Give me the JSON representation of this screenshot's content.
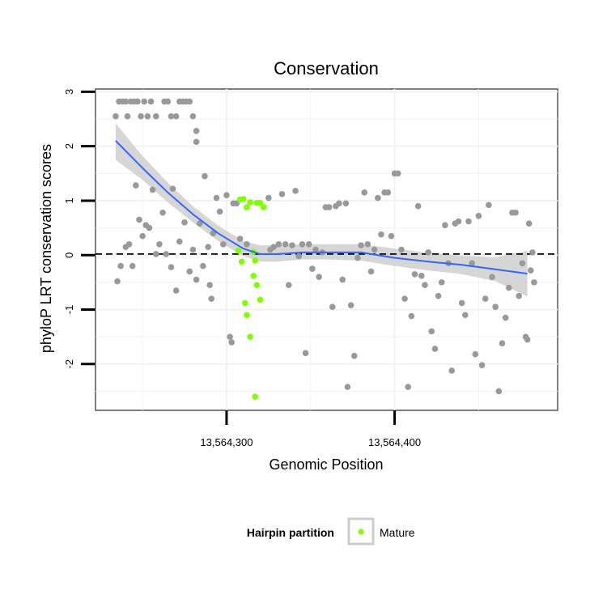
{
  "chart_data": {
    "type": "scatter",
    "title": "Conservation",
    "xlabel": "Genomic Position",
    "ylabel": "phyloP LRT conservation scores",
    "xlim": [
      13564222,
      13564497
    ],
    "ylim": [
      -2.85,
      3.05
    ],
    "x_ticks": [
      {
        "value": 13564300,
        "label": "13,564,300"
      },
      {
        "value": 13564400,
        "label": "13,564,400"
      }
    ],
    "y_ticks": [
      {
        "value": -2,
        "label": "-2"
      },
      {
        "value": -1,
        "label": "-1"
      },
      {
        "value": 0,
        "label": "0"
      },
      {
        "value": 1,
        "label": "1"
      },
      {
        "value": 2,
        "label": "2"
      },
      {
        "value": 3,
        "label": "3"
      }
    ],
    "grid": true,
    "reference_line": {
      "y": 0.02,
      "style": "dashed",
      "color": "#000000"
    },
    "legend": {
      "title": "Hairpin partition",
      "position": "bottom",
      "entries": [
        {
          "label": "Mature",
          "color": "#7fff00"
        }
      ]
    },
    "colors": {
      "other": "#999999",
      "mature": "#7fff00",
      "smooth": "#3366ff",
      "band": "#c8c8c8",
      "panel_border": "#7f7f7f"
    },
    "smooth_curve": {
      "x": [
        13564234,
        13564250,
        13564265,
        13564280,
        13564295,
        13564310,
        13564320,
        13564330,
        13564345,
        13564360,
        13564380,
        13564400,
        13564420,
        13564440,
        13564460,
        13564479
      ],
      "y": [
        2.1,
        1.6,
        1.15,
        0.75,
        0.4,
        0.12,
        0.02,
        0.02,
        0.05,
        0.05,
        0.05,
        -0.05,
        -0.12,
        -0.18,
        -0.26,
        -0.34
      ],
      "upper": [
        2.42,
        1.82,
        1.33,
        0.9,
        0.54,
        0.26,
        0.18,
        0.18,
        0.2,
        0.2,
        0.2,
        0.12,
        0.04,
        -0.01,
        -0.04,
        0.08
      ],
      "lower": [
        1.75,
        1.38,
        0.97,
        0.6,
        0.26,
        -0.02,
        -0.12,
        -0.12,
        -0.08,
        -0.08,
        -0.1,
        -0.2,
        -0.28,
        -0.35,
        -0.48,
        -0.76
      ]
    },
    "series": [
      {
        "name": "Mature",
        "points": [
          [
            13564308,
            1.02
          ],
          [
            13564310,
            1.03
          ],
          [
            13564312,
            0.88
          ],
          [
            13564314,
            0.97
          ],
          [
            13564316,
            0.06
          ],
          [
            13564318,
            0.96
          ],
          [
            13564320,
            0.96
          ],
          [
            13564322,
            0.88
          ],
          [
            13564307,
            0.08
          ],
          [
            13564309,
            -0.12
          ],
          [
            13564311,
            -0.88
          ],
          [
            13564312,
            -1.1
          ],
          [
            13564314,
            -1.5
          ],
          [
            13564316,
            -0.38
          ],
          [
            13564317,
            -0.1
          ],
          [
            13564318,
            -0.55
          ],
          [
            13564320,
            -0.82
          ],
          [
            13564317,
            -2.6
          ]
        ]
      },
      {
        "name": "Other",
        "points": [
          [
            13564234,
            2.55
          ],
          [
            13564236,
            2.82
          ],
          [
            13564238,
            2.82
          ],
          [
            13564240,
            2.82
          ],
          [
            13564241,
            2.55
          ],
          [
            13564243,
            2.82
          ],
          [
            13564245,
            2.82
          ],
          [
            13564247,
            2.82
          ],
          [
            13564249,
            2.55
          ],
          [
            13564251,
            2.82
          ],
          [
            13564253,
            2.55
          ],
          [
            13564255,
            2.82
          ],
          [
            13564258,
            2.55
          ],
          [
            13564263,
            2.82
          ],
          [
            13564265,
            2.82
          ],
          [
            13564267,
            2.55
          ],
          [
            13564270,
            2.55
          ],
          [
            13564272,
            2.82
          ],
          [
            13564274,
            2.82
          ],
          [
            13564276,
            2.82
          ],
          [
            13564278,
            2.82
          ],
          [
            13564280,
            2.55
          ],
          [
            13564282,
            2.28
          ],
          [
            13564282,
            2.08
          ],
          [
            13564235,
            -0.48
          ],
          [
            13564237,
            -0.2
          ],
          [
            13564240,
            0.15
          ],
          [
            13564242,
            0.2
          ],
          [
            13564244,
            -0.2
          ],
          [
            13564246,
            1.28
          ],
          [
            13564248,
            0.65
          ],
          [
            13564250,
            0.35
          ],
          [
            13564252,
            0.55
          ],
          [
            13564254,
            0.5
          ],
          [
            13564256,
            1.2
          ],
          [
            13564258,
            0.02
          ],
          [
            13564260,
            0.2
          ],
          [
            13564262,
            0.78
          ],
          [
            13564264,
            0.02
          ],
          [
            13564267,
            -0.22
          ],
          [
            13564268,
            1.22
          ],
          [
            13564270,
            -0.65
          ],
          [
            13564272,
            0.25
          ],
          [
            13564275,
            0.6
          ],
          [
            13564278,
            -0.3
          ],
          [
            13564280,
            0.1
          ],
          [
            13564282,
            -0.45
          ],
          [
            13564284,
            0.58
          ],
          [
            13564286,
            -0.2
          ],
          [
            13564287,
            1.45
          ],
          [
            13564289,
            0.15
          ],
          [
            13564290,
            -0.55
          ],
          [
            13564291,
            -0.8
          ],
          [
            13564292,
            0.4
          ],
          [
            13564294,
            1.05
          ],
          [
            13564296,
            0.8
          ],
          [
            13564298,
            0.2
          ],
          [
            13564300,
            1.1
          ],
          [
            13564302,
            -1.5
          ],
          [
            13564303,
            -1.6
          ],
          [
            13564304,
            0.95
          ],
          [
            13564306,
            0.95
          ],
          [
            13564308,
            0.3
          ],
          [
            13564312,
            0.2
          ],
          [
            13564325,
            1.05
          ],
          [
            13564326,
            0.1
          ],
          [
            13564328,
            0.15
          ],
          [
            13564331,
            0.2
          ],
          [
            13564333,
            1.12
          ],
          [
            13564335,
            0.2
          ],
          [
            13564337,
            -0.55
          ],
          [
            13564339,
            0.18
          ],
          [
            13564341,
            1.18
          ],
          [
            13564343,
            -0.02
          ],
          [
            13564345,
            0.2
          ],
          [
            13564347,
            -1.8
          ],
          [
            13564349,
            0.2
          ],
          [
            13564351,
            -0.25
          ],
          [
            13564353,
            0.1
          ],
          [
            13564355,
            -0.4
          ],
          [
            13564357,
            0.05
          ],
          [
            13564359,
            0.88
          ],
          [
            13564361,
            0.88
          ],
          [
            13564363,
            -0.95
          ],
          [
            13564365,
            0.9
          ],
          [
            13564367,
            0.95
          ],
          [
            13564369,
            -0.45
          ],
          [
            13564371,
            0.95
          ],
          [
            13564372,
            -2.42
          ],
          [
            13564374,
            -0.92
          ],
          [
            13564376,
            -1.85
          ],
          [
            13564378,
            -0.05
          ],
          [
            13564380,
            0.18
          ],
          [
            13564382,
            1.15
          ],
          [
            13564384,
            0.2
          ],
          [
            13564386,
            -0.3
          ],
          [
            13564388,
            0.1
          ],
          [
            13564390,
            1.05
          ],
          [
            13564392,
            0.38
          ],
          [
            13564394,
            1.15
          ],
          [
            13564396,
            1.15
          ],
          [
            13564398,
            0.35
          ],
          [
            13564400,
            1.5
          ],
          [
            13564402,
            1.5
          ],
          [
            13564404,
            0.1
          ],
          [
            13564406,
            -0.8
          ],
          [
            13564408,
            -2.42
          ],
          [
            13564410,
            -1.12
          ],
          [
            13564412,
            -0.35
          ],
          [
            13564414,
            0.9
          ],
          [
            13564416,
            -0.38
          ],
          [
            13564418,
            -0.55
          ],
          [
            13564420,
            0.05
          ],
          [
            13564422,
            -1.4
          ],
          [
            13564424,
            -1.72
          ],
          [
            13564426,
            -0.75
          ],
          [
            13564428,
            -0.5
          ],
          [
            13564430,
            0.55
          ],
          [
            13564432,
            -0.15
          ],
          [
            13564434,
            -2.12
          ],
          [
            13564436,
            0.58
          ],
          [
            13564438,
            0.62
          ],
          [
            13564440,
            -0.88
          ],
          [
            13564442,
            -1.1
          ],
          [
            13564444,
            0.62
          ],
          [
            13564446,
            -0.15
          ],
          [
            13564448,
            -1.82
          ],
          [
            13564450,
            0.72
          ],
          [
            13564452,
            -2.02
          ],
          [
            13564454,
            -0.8
          ],
          [
            13564456,
            0.92
          ],
          [
            13564458,
            -0.4
          ],
          [
            13564460,
            -0.95
          ],
          [
            13564462,
            -2.5
          ],
          [
            13564464,
            -1.62
          ],
          [
            13564466,
            -1.15
          ],
          [
            13564468,
            -0.6
          ],
          [
            13564470,
            0.78
          ],
          [
            13564472,
            0.78
          ],
          [
            13564474,
            -0.75
          ],
          [
            13564476,
            -0.15
          ],
          [
            13564478,
            -1.5
          ],
          [
            13564479,
            -1.55
          ],
          [
            13564480,
            0.58
          ],
          [
            13564481,
            -0.28
          ],
          [
            13564482,
            0.05
          ],
          [
            13564483,
            -0.5
          ]
        ]
      }
    ]
  }
}
